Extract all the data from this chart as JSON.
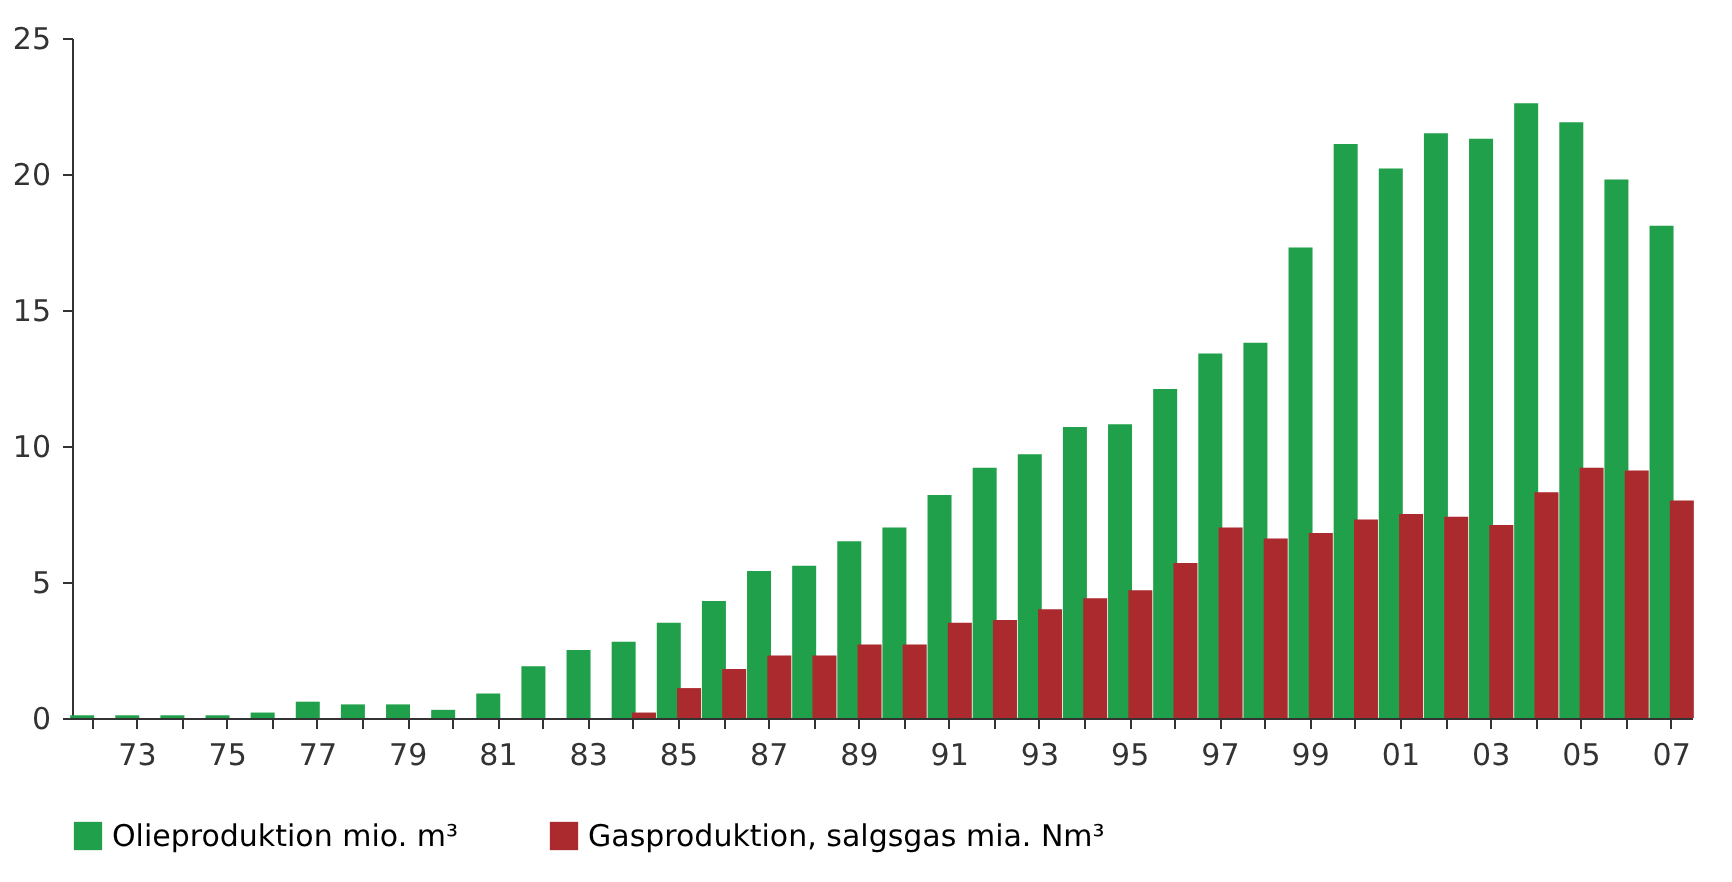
{
  "chart_data": {
    "type": "bar",
    "categories": [
      null,
      "73",
      null,
      "75",
      null,
      "77",
      null,
      "79",
      null,
      "81",
      null,
      "83",
      null,
      "85",
      null,
      "87",
      null,
      "89",
      null,
      "91",
      null,
      "93",
      null,
      "95",
      null,
      "97",
      null,
      "99",
      null,
      "01",
      null,
      "03",
      null,
      "05",
      null,
      "07"
    ],
    "series": [
      {
        "name": "Olieproduktion  mio. m³",
        "color": "#21a04b",
        "values": [
          0.1,
          0.1,
          0.1,
          0.1,
          0.2,
          0.6,
          0.5,
          0.5,
          0.3,
          0.9,
          1.9,
          2.5,
          2.8,
          3.5,
          4.3,
          5.4,
          5.6,
          6.5,
          7.0,
          8.2,
          9.2,
          9.7,
          10.7,
          10.8,
          12.1,
          13.4,
          13.8,
          17.3,
          21.1,
          20.2,
          21.5,
          21.3,
          22.6,
          21.9,
          19.8,
          18.1
        ]
      },
      {
        "name": "Gasproduktion, salgsgas mia. Nm³",
        "color": "#aa2a2d",
        "values": [
          null,
          null,
          null,
          null,
          null,
          null,
          null,
          null,
          null,
          null,
          null,
          null,
          0.2,
          1.1,
          1.8,
          2.3,
          2.3,
          2.7,
          2.7,
          3.5,
          3.6,
          4.0,
          4.4,
          4.7,
          5.7,
          7.0,
          6.6,
          6.8,
          7.3,
          7.5,
          7.4,
          7.1,
          8.3,
          9.2,
          9.1,
          8.0
        ]
      }
    ],
    "ylim": [
      0,
      25
    ],
    "yticks": [
      0,
      5,
      10,
      15,
      20,
      25
    ],
    "grid": false,
    "legend": "bottom left"
  }
}
